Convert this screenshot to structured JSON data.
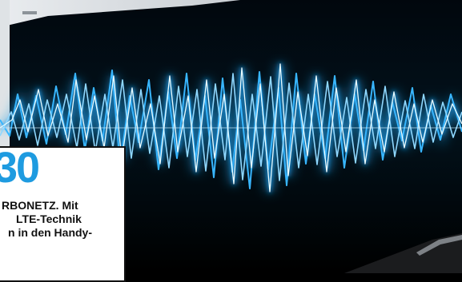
{
  "callout": {
    "number": "30",
    "line1_bold": "RBONETZ.",
    "line1_rest": " Mit",
    "line2": "LTE-Technik",
    "line3": "n in den Handy-"
  },
  "colors": {
    "accent": "#1e9be0",
    "wave_core": "#e8fbff",
    "wave_glow": "#2aa8ff",
    "background": "#000000"
  }
}
